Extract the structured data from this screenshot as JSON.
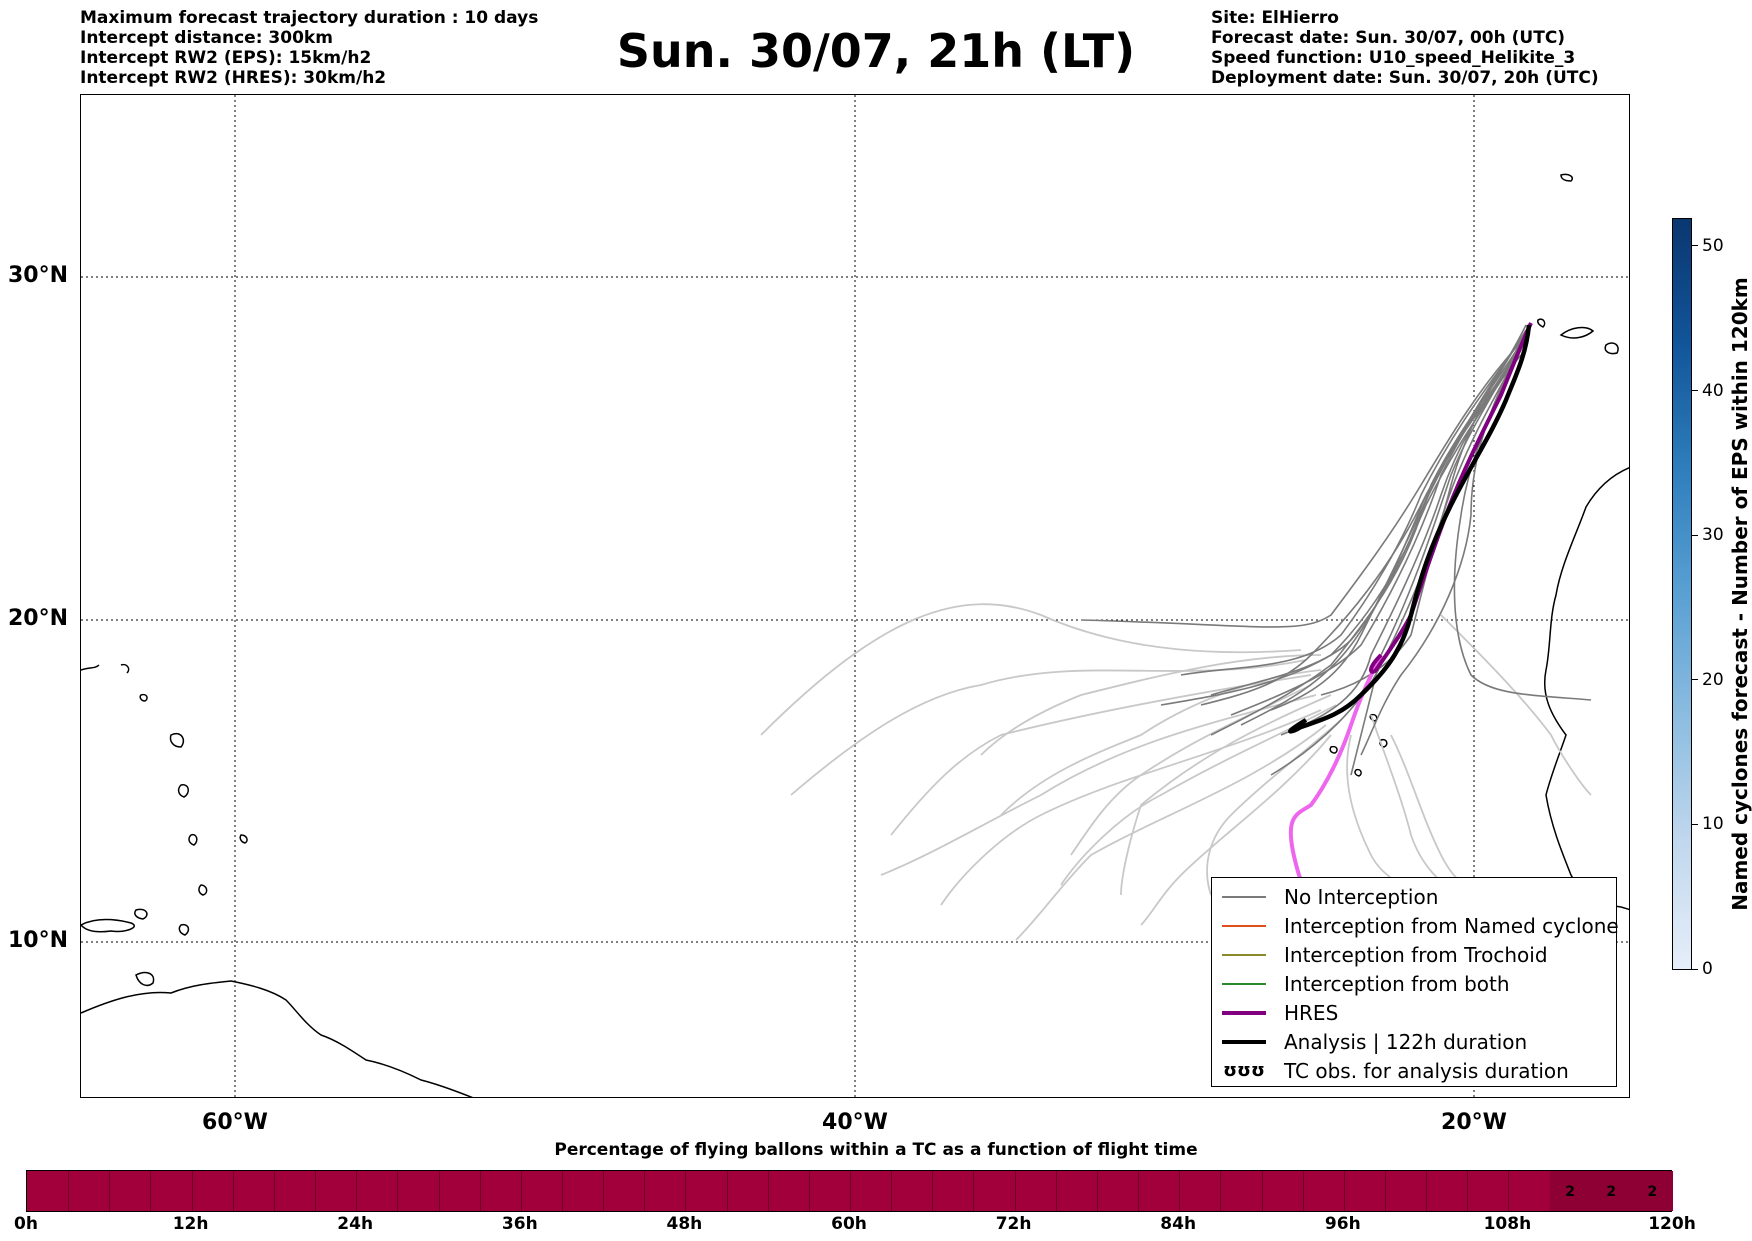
{
  "header": {
    "left_lines": [
      "Maximum forecast trajectory duration : 10 days",
      "Intercept distance: 300km",
      "Intercept RW2 (EPS):  15km/h2",
      "Intercept RW2 (HRES): 30km/h2"
    ],
    "right_lines": [
      "Site: ElHierro",
      "Forecast date: Sun. 30/07, 00h (UTC)",
      "Speed function: U10_speed_Helikite_3",
      "Deployment date: Sun. 30/07, 20h (UTC)"
    ],
    "title": "Sun. 30/07, 21h (LT)"
  },
  "map": {
    "lat_labels": [
      "30°N",
      "20°N",
      "10°N"
    ],
    "lon_labels": [
      "60°W",
      "40°W",
      "20°W"
    ],
    "colors": {
      "no_interception": "#7a7a7a",
      "no_interception_light": "#c8c8c8",
      "named_cyclone": "#e0501e",
      "trochoid": "#8a8a2a",
      "both": "#2a8a2a",
      "hres": "#800080",
      "hres_light": "#ee66ee",
      "analysis": "#000000"
    }
  },
  "legend": {
    "items": [
      {
        "label": "No Interception",
        "color": "#7a7a7a",
        "style": "thin"
      },
      {
        "label": "Interception from Named cyclone",
        "color": "#e0501e",
        "style": "thin"
      },
      {
        "label": "Interception from Trochoid",
        "color": "#8a8a2a",
        "style": "thin"
      },
      {
        "label": "Interception from both",
        "color": "#2a8a2a",
        "style": "thin"
      },
      {
        "label": "HRES",
        "color": "#800080",
        "style": "thick"
      },
      {
        "label": "Analysis | 122h duration",
        "color": "#000000",
        "style": "thick"
      },
      {
        "label": "TC obs. for analysis duration",
        "color": "#000000",
        "style": "symbol",
        "symbol": "ʊʊʊ"
      }
    ]
  },
  "colorbar": {
    "label": "Named cyclones forecast - Number of EPS within 120km",
    "ticks": [
      "0",
      "10",
      "20",
      "30",
      "40",
      "50"
    ],
    "range": [
      0,
      52
    ]
  },
  "bottom": {
    "title": "Percentage of flying ballons within a TC as a function of flight time",
    "ticks": [
      "0h",
      "12h",
      "24h",
      "36h",
      "48h",
      "60h",
      "72h",
      "84h",
      "96h",
      "108h",
      "120h"
    ],
    "cell_values": [
      "2",
      "2",
      "2"
    ],
    "bar_color": "#a1003a"
  }
}
